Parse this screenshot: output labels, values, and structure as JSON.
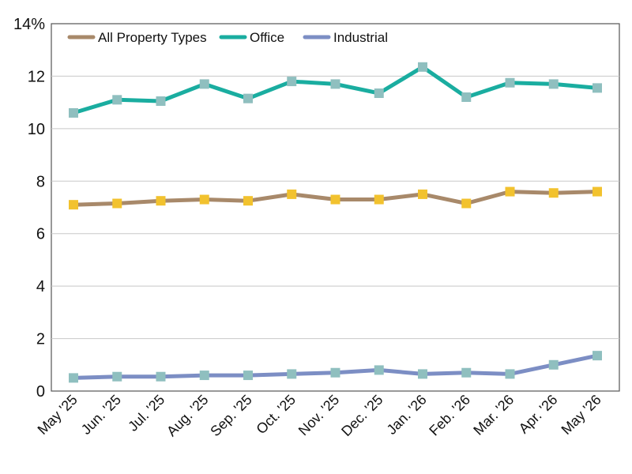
{
  "chart_data": {
    "type": "line",
    "title": "",
    "xlabel": "",
    "ylabel": "",
    "ylim": [
      0,
      14
    ],
    "yticks": [
      {
        "value": 0,
        "label": "0"
      },
      {
        "value": 2,
        "label": "2"
      },
      {
        "value": 4,
        "label": "4"
      },
      {
        "value": 6,
        "label": "6"
      },
      {
        "value": 8,
        "label": "8"
      },
      {
        "value": 10,
        "label": "10"
      },
      {
        "value": 12,
        "label": "12"
      },
      {
        "value": 14,
        "label": "14%"
      }
    ],
    "grid": true,
    "legend_position": "top-left",
    "categories": [
      "May '25",
      "Jun. '25",
      "Jul. '25",
      "Aug. '25",
      "Sep. '25",
      "Oct. '25",
      "Nov. '25",
      "Dec. '25",
      "Jan. '26",
      "Feb. '26",
      "Mar. '26",
      "Apr. '26",
      "May '26"
    ],
    "series": [
      {
        "name": "All Property Types",
        "line_color": "#a8896a",
        "marker_color": "#f2c22e",
        "values": [
          7.1,
          7.15,
          7.25,
          7.3,
          7.25,
          7.5,
          7.3,
          7.3,
          7.5,
          7.15,
          7.6,
          7.55,
          7.6
        ]
      },
      {
        "name": "Office",
        "line_color": "#1aada0",
        "marker_color": "#8fbfbf",
        "values": [
          10.6,
          11.1,
          11.05,
          11.7,
          11.15,
          11.8,
          11.7,
          11.35,
          12.35,
          11.2,
          11.75,
          11.7,
          11.55
        ]
      },
      {
        "name": "Industrial",
        "line_color": "#7c8ec4",
        "marker_color": "#8fbfbf",
        "values": [
          0.5,
          0.55,
          0.55,
          0.6,
          0.6,
          0.65,
          0.7,
          0.8,
          0.65,
          0.7,
          0.65,
          1.0,
          1.35
        ]
      }
    ]
  }
}
